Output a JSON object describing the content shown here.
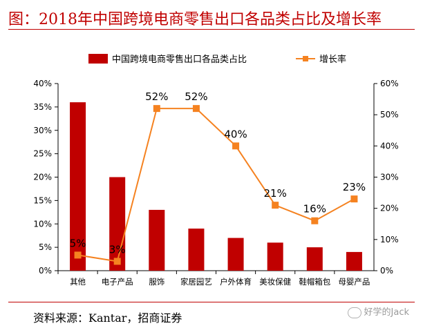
{
  "header": {
    "title": "图：2018年中国跨境电商零售出口各品类占比及增长率"
  },
  "footer": {
    "source": "资料来源：Kantar，招商证券",
    "watermark": "好学的Jack"
  },
  "colors": {
    "bar": "#c00000",
    "line": "#f58220",
    "title": "#c00000"
  },
  "chart_data": {
    "type": "bar",
    "title": "",
    "categories": [
      "其他",
      "电子产品",
      "服饰",
      "家居园艺",
      "户外体育",
      "美妆保健",
      "鞋帽箱包",
      "母婴产品"
    ],
    "series": [
      {
        "name": "中国跨境电商零售出口各品类占比",
        "type": "bar",
        "axis": "left",
        "values": [
          36,
          20,
          13,
          9,
          7,
          6,
          5,
          4
        ]
      },
      {
        "name": "增长率",
        "type": "line",
        "axis": "right",
        "values": [
          5,
          3,
          52,
          52,
          40,
          21,
          16,
          23
        ],
        "data_labels": [
          "5%",
          "3%",
          "52%",
          "52%",
          "40%",
          "21%",
          "16%",
          "23%"
        ]
      }
    ],
    "y_left": {
      "ylim": [
        0,
        40
      ],
      "ticks": [
        0,
        5,
        10,
        15,
        20,
        25,
        30,
        35,
        40
      ],
      "tick_labels": [
        "0%",
        "5%",
        "10%",
        "15%",
        "20%",
        "25%",
        "30%",
        "35%",
        "40%"
      ]
    },
    "y_right": {
      "ylim": [
        0,
        60
      ],
      "ticks": [
        0,
        10,
        20,
        30,
        40,
        50,
        60
      ],
      "tick_labels": [
        "0%",
        "10%",
        "20%",
        "30%",
        "40%",
        "50%",
        "60%"
      ]
    },
    "legend_position": "top",
    "grid": false
  }
}
